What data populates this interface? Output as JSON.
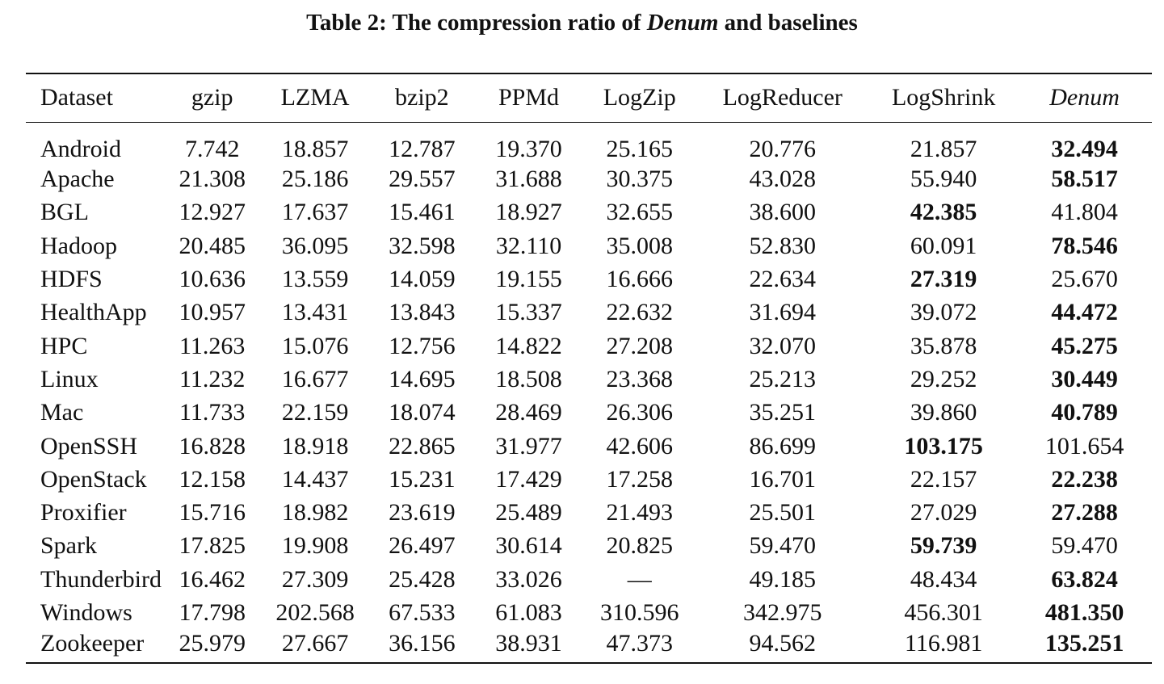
{
  "caption": {
    "prefix": "Table 2: The compression ratio of ",
    "emph": "Denum",
    "suffix": " and baselines"
  },
  "headers": [
    "Dataset",
    "gzip",
    "LZMA",
    "bzip2",
    "PPMd",
    "LogZip",
    "LogReducer",
    "LogShrink",
    "Denum"
  ],
  "rows": [
    {
      "dataset": "Android",
      "values": [
        "7.742",
        "18.857",
        "12.787",
        "19.370",
        "25.165",
        "20.776",
        "21.857",
        "32.494"
      ],
      "best": 7
    },
    {
      "dataset": "Apache",
      "values": [
        "21.308",
        "25.186",
        "29.557",
        "31.688",
        "30.375",
        "43.028",
        "55.940",
        "58.517"
      ],
      "best": 7
    },
    {
      "dataset": "BGL",
      "values": [
        "12.927",
        "17.637",
        "15.461",
        "18.927",
        "32.655",
        "38.600",
        "42.385",
        "41.804"
      ],
      "best": 6
    },
    {
      "dataset": "Hadoop",
      "values": [
        "20.485",
        "36.095",
        "32.598",
        "32.110",
        "35.008",
        "52.830",
        "60.091",
        "78.546"
      ],
      "best": 7
    },
    {
      "dataset": "HDFS",
      "values": [
        "10.636",
        "13.559",
        "14.059",
        "19.155",
        "16.666",
        "22.634",
        "27.319",
        "25.670"
      ],
      "best": 6
    },
    {
      "dataset": "HealthApp",
      "values": [
        "10.957",
        "13.431",
        "13.843",
        "15.337",
        "22.632",
        "31.694",
        "39.072",
        "44.472"
      ],
      "best": 7
    },
    {
      "dataset": "HPC",
      "values": [
        "11.263",
        "15.076",
        "12.756",
        "14.822",
        "27.208",
        "32.070",
        "35.878",
        "45.275"
      ],
      "best": 7
    },
    {
      "dataset": "Linux",
      "values": [
        "11.232",
        "16.677",
        "14.695",
        "18.508",
        "23.368",
        "25.213",
        "29.252",
        "30.449"
      ],
      "best": 7
    },
    {
      "dataset": "Mac",
      "values": [
        "11.733",
        "22.159",
        "18.074",
        "28.469",
        "26.306",
        "35.251",
        "39.860",
        "40.789"
      ],
      "best": 7
    },
    {
      "dataset": "OpenSSH",
      "values": [
        "16.828",
        "18.918",
        "22.865",
        "31.977",
        "42.606",
        "86.699",
        "103.175",
        "101.654"
      ],
      "best": 6
    },
    {
      "dataset": "OpenStack",
      "values": [
        "12.158",
        "14.437",
        "15.231",
        "17.429",
        "17.258",
        "16.701",
        "22.157",
        "22.238"
      ],
      "best": 7
    },
    {
      "dataset": "Proxifier",
      "values": [
        "15.716",
        "18.982",
        "23.619",
        "25.489",
        "21.493",
        "25.501",
        "27.029",
        "27.288"
      ],
      "best": 7
    },
    {
      "dataset": "Spark",
      "values": [
        "17.825",
        "19.908",
        "26.497",
        "30.614",
        "20.825",
        "59.470",
        "59.739",
        "59.470"
      ],
      "best": 6
    },
    {
      "dataset": "Thunderbird",
      "values": [
        "16.462",
        "27.309",
        "25.428",
        "33.026",
        "—",
        "49.185",
        "48.434",
        "63.824"
      ],
      "best": 7
    },
    {
      "dataset": "Windows",
      "values": [
        "17.798",
        "202.568",
        "67.533",
        "61.083",
        "310.596",
        "342.975",
        "456.301",
        "481.350"
      ],
      "best": 7
    },
    {
      "dataset": "Zookeeper",
      "values": [
        "25.979",
        "27.667",
        "36.156",
        "38.931",
        "47.373",
        "94.562",
        "116.981",
        "135.251"
      ],
      "best": 7
    }
  ]
}
